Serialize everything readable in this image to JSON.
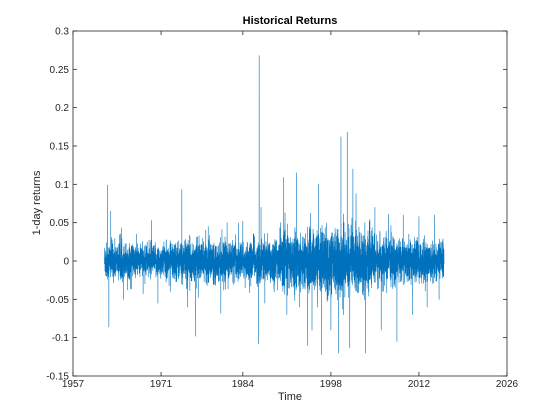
{
  "chart_data": {
    "type": "line",
    "title": "Historical Returns",
    "xlabel": "Time",
    "ylabel": "1-day returns",
    "xlim": [
      1957,
      2026
    ],
    "ylim": [
      -0.15,
      0.3
    ],
    "x_ticks": [
      1957,
      1971,
      1984,
      1998,
      2012,
      2026
    ],
    "y_ticks": [
      -0.15,
      -0.1,
      -0.05,
      0,
      0.05,
      0.1,
      0.15,
      0.2,
      0.25,
      0.3
    ],
    "x_tick_labels": [
      "1957",
      "1971",
      "1984",
      "1998",
      "2012",
      "2026"
    ],
    "y_tick_labels": [
      "-0.15",
      "-0.1",
      "-0.05",
      "0",
      "0.05",
      "0.1",
      "0.15",
      "0.2",
      "0.25",
      "0.3"
    ],
    "grid": false,
    "line_color": "#0072BD",
    "series": [
      {
        "x_range": [
          1962.0,
          2016.0
        ],
        "spikes": [
          {
            "x": 1962.5,
            "y": 0.099
          },
          {
            "x": 1962.7,
            "y": -0.086
          },
          {
            "x": 1963.0,
            "y": 0.065
          },
          {
            "x": 1965.0,
            "y": -0.05
          },
          {
            "x": 1969.5,
            "y": 0.053
          },
          {
            "x": 1970.5,
            "y": -0.055
          },
          {
            "x": 1974.3,
            "y": 0.093
          },
          {
            "x": 1975.2,
            "y": -0.06
          },
          {
            "x": 1976.5,
            "y": -0.098
          },
          {
            "x": 1978.5,
            "y": 0.045
          },
          {
            "x": 1980.5,
            "y": -0.068
          },
          {
            "x": 1981.5,
            "y": 0.05
          },
          {
            "x": 1984.0,
            "y": 0.052
          },
          {
            "x": 1986.6,
            "y": 0.268
          },
          {
            "x": 1986.5,
            "y": -0.108
          },
          {
            "x": 1986.9,
            "y": 0.07
          },
          {
            "x": 1987.5,
            "y": -0.055
          },
          {
            "x": 1990.0,
            "y": 0.05
          },
          {
            "x": 1990.5,
            "y": 0.109
          },
          {
            "x": 1991.0,
            "y": -0.07
          },
          {
            "x": 1992.5,
            "y": 0.115
          },
          {
            "x": 1993.0,
            "y": -0.06
          },
          {
            "x": 1994.3,
            "y": -0.11
          },
          {
            "x": 1995.0,
            "y": -0.09
          },
          {
            "x": 1996.0,
            "y": 0.1
          },
          {
            "x": 1996.5,
            "y": -0.122
          },
          {
            "x": 1998.0,
            "y": -0.09
          },
          {
            "x": 1999.2,
            "y": -0.12
          },
          {
            "x": 1999.6,
            "y": 0.162
          },
          {
            "x": 2000.0,
            "y": -0.07
          },
          {
            "x": 2000.6,
            "y": 0.168
          },
          {
            "x": 2001.0,
            "y": -0.113
          },
          {
            "x": 2001.5,
            "y": 0.12
          },
          {
            "x": 2002.0,
            "y": 0.088
          },
          {
            "x": 2003.5,
            "y": -0.12
          },
          {
            "x": 2005.0,
            "y": 0.07
          },
          {
            "x": 2006.0,
            "y": -0.09
          },
          {
            "x": 2008.5,
            "y": -0.105
          },
          {
            "x": 2009.5,
            "y": 0.06
          },
          {
            "x": 2011.0,
            "y": -0.07
          },
          {
            "x": 2012.0,
            "y": 0.058
          },
          {
            "x": 2013.3,
            "y": -0.06
          },
          {
            "x": 2014.5,
            "y": 0.06
          },
          {
            "x": 2015.2,
            "y": -0.05
          }
        ],
        "volatility_profile": [
          {
            "x": 1962.0,
            "v": 0.012
          },
          {
            "x": 1970.0,
            "v": 0.01
          },
          {
            "x": 1975.0,
            "v": 0.013
          },
          {
            "x": 1980.0,
            "v": 0.012
          },
          {
            "x": 1985.0,
            "v": 0.012
          },
          {
            "x": 1990.0,
            "v": 0.016
          },
          {
            "x": 1995.0,
            "v": 0.019
          },
          {
            "x": 2000.0,
            "v": 0.022
          },
          {
            "x": 2003.0,
            "v": 0.019
          },
          {
            "x": 2006.0,
            "v": 0.014
          },
          {
            "x": 2009.0,
            "v": 0.013
          },
          {
            "x": 2016.0,
            "v": 0.012
          }
        ]
      }
    ]
  }
}
